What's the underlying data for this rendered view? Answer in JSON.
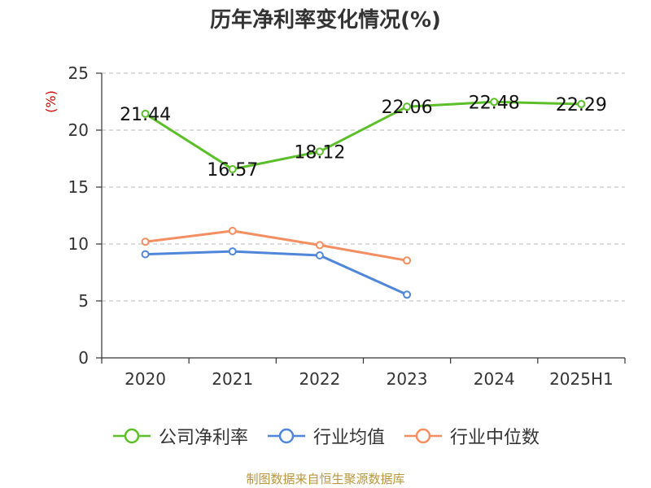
{
  "title": "历年净利率变化情况(%)",
  "source": "制图数据来自恒生聚源数据库",
  "chart_data": {
    "type": "line",
    "title": "历年净利率变化情况(%)",
    "ylabel": "(%)",
    "xlabel": "",
    "categories": [
      "2020",
      "2021",
      "2022",
      "2023",
      "2024",
      "2025H1"
    ],
    "ylim": [
      0,
      25
    ],
    "yticks": [
      0,
      5,
      10,
      15,
      20,
      25
    ],
    "grid": true,
    "legend_position": "bottom",
    "series": [
      {
        "name": "公司净利率",
        "color": "#5cbf2a",
        "values": [
          21.44,
          16.57,
          18.12,
          22.06,
          22.48,
          22.29
        ],
        "labels": [
          "21.44",
          "16.57",
          "18.12",
          "22.06",
          "22.48",
          "22.29"
        ]
      },
      {
        "name": "行业均值",
        "color": "#4f86d9",
        "values": [
          9.1,
          9.35,
          9.0,
          5.55,
          null,
          null
        ]
      },
      {
        "name": "行业中位数",
        "color": "#f28e5f",
        "values": [
          10.2,
          11.15,
          9.9,
          8.55,
          null,
          null
        ]
      }
    ]
  }
}
